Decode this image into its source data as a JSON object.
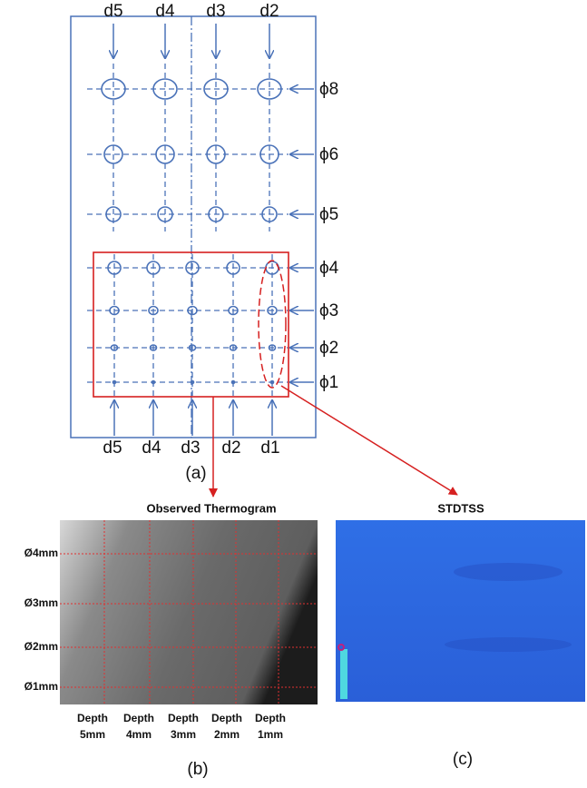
{
  "panel_a": {
    "top_labels": [
      "d5",
      "d4",
      "d3",
      "d2"
    ],
    "right_labels": [
      "ϕ8",
      "ϕ6",
      "ϕ5",
      "ϕ4",
      "ϕ3",
      "ϕ2",
      "ϕ1"
    ],
    "bottom_labels": [
      "d5",
      "d4",
      "d3",
      "d2",
      "d1"
    ],
    "caption": "(a)"
  },
  "panel_b": {
    "title": "Observed Thermogram",
    "row_labels": [
      "Ø4mm",
      "Ø3mm",
      "Ø2mm",
      "Ø1mm"
    ],
    "column_labels": [
      [
        "Depth",
        "5mm"
      ],
      [
        "Depth",
        "4mm"
      ],
      [
        "Depth",
        "3mm"
      ],
      [
        "Depth",
        "2mm"
      ],
      [
        "Depth",
        "1mm"
      ]
    ],
    "caption": "(b)"
  },
  "panel_c": {
    "title": "STDTSS",
    "caption": "(c)"
  }
}
